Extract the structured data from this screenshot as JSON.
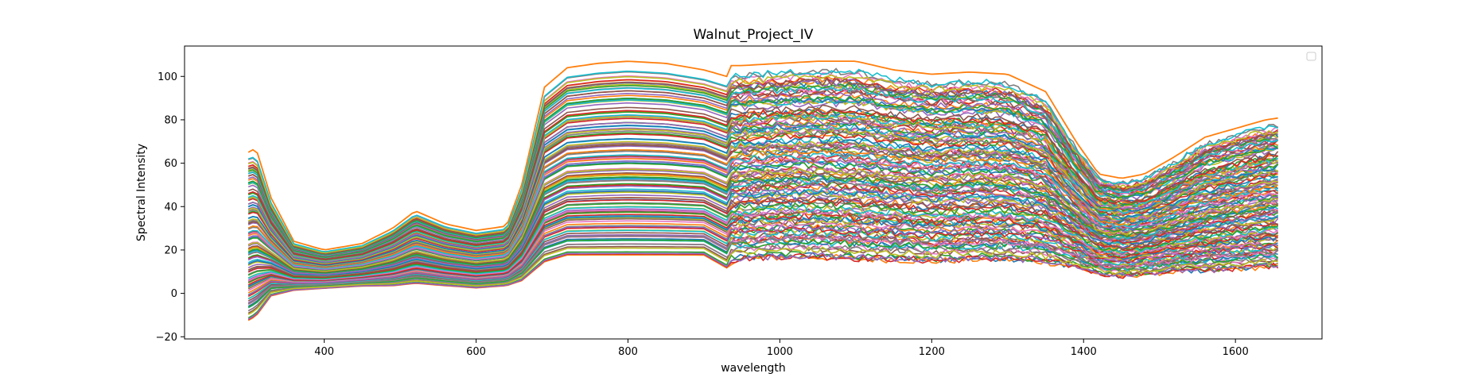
{
  "chart_data": {
    "type": "line",
    "title": "Walnut_Project_IV",
    "xlabel": "wavelength",
    "ylabel": "Spectral Intensity",
    "xlim": [
      216,
      1714
    ],
    "ylim": [
      -21,
      114
    ],
    "x_ticks": [
      400,
      600,
      800,
      1000,
      1200,
      1400,
      1600
    ],
    "y_ticks": [
      -20,
      0,
      20,
      40,
      60,
      80,
      100
    ],
    "grid": false,
    "legend": {
      "placement": "top-right",
      "entries": []
    },
    "series_count_note_visible": false,
    "envelope": {
      "x": [
        300,
        310,
        330,
        360,
        400,
        450,
        490,
        520,
        560,
        600,
        640,
        660,
        690,
        720,
        760,
        800,
        850,
        900,
        930,
        935,
        950,
        1000,
        1050,
        1100,
        1150,
        1200,
        1250,
        1300,
        1350,
        1390,
        1420,
        1450,
        1480,
        1520,
        1560,
        1600,
        1640,
        1660
      ],
      "top": [
        66,
        67,
        44,
        24,
        20,
        23,
        30,
        38,
        32,
        29,
        31,
        50,
        95,
        104,
        106,
        107,
        106,
        103,
        100,
        105,
        105,
        106,
        107,
        107,
        103,
        101,
        102,
        101,
        93,
        70,
        55,
        53,
        55,
        63,
        72,
        76,
        80,
        81
      ],
      "bottom": [
        -14,
        -12,
        -2,
        1,
        2,
        3,
        3,
        4,
        3,
        2,
        3,
        5,
        13,
        16,
        16,
        16,
        16,
        16,
        10,
        13,
        14,
        15,
        15,
        14,
        14,
        13,
        14,
        14,
        13,
        11,
        8,
        7,
        8,
        9,
        9,
        10,
        11,
        11
      ]
    },
    "highlighted_series": [
      {
        "color": "#ff7f0e",
        "x": [
          300,
          310,
          330,
          360,
          400,
          450,
          490,
          520,
          560,
          600,
          640,
          660,
          690,
          720,
          760,
          800,
          850,
          900,
          930,
          935,
          950,
          1000,
          1050,
          1100,
          1150,
          1200,
          1250,
          1300,
          1350,
          1390,
          1420,
          1450,
          1480,
          1520,
          1560,
          1600,
          1640,
          1660
        ],
        "values": [
          65,
          67,
          44,
          24,
          20,
          23,
          30,
          38,
          32,
          29,
          31,
          50,
          95,
          104,
          106,
          107,
          106,
          103,
          100,
          105,
          105,
          106,
          107,
          107,
          103,
          101,
          102,
          101,
          93,
          70,
          55,
          53,
          55,
          63,
          72,
          76,
          80,
          81
        ]
      }
    ],
    "series_palette": [
      "#1f77b4",
      "#ff7f0e",
      "#2ca02c",
      "#d62728",
      "#9467bd",
      "#8c564b",
      "#e377c2",
      "#7f7f7f",
      "#bcbd22",
      "#17becf"
    ],
    "series_shown_count": 140
  }
}
